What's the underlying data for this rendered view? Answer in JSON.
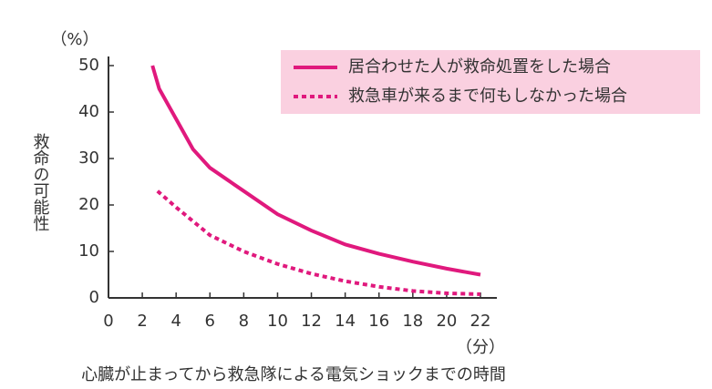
{
  "chart_data": {
    "type": "line",
    "y_unit": "（%）",
    "x_unit": "（分）",
    "y_label": "救命の可能性",
    "x_label": "心臓が止まってから救急隊による電気ショックまでの時間",
    "xlim": [
      0,
      22
    ],
    "xticks": [
      0,
      2,
      4,
      6,
      8,
      10,
      12,
      14,
      16,
      18,
      20,
      22
    ],
    "ylim": [
      0,
      50
    ],
    "yticks": [
      0,
      10,
      20,
      30,
      40,
      50
    ],
    "legend": "upper right",
    "series": [
      {
        "name": "居合わせた人が救命処置をした場合",
        "color": "#e0197d",
        "style": "solid",
        "x": [
          2.6,
          3,
          4,
          5,
          6,
          7,
          8,
          10,
          12,
          14,
          16,
          18,
          20,
          22
        ],
        "values": [
          50,
          45,
          38.5,
          32,
          28,
          25.5,
          23,
          18,
          14.5,
          11.5,
          9.5,
          7.8,
          6.3,
          5
        ]
      },
      {
        "name": "救急車が来るまで何もしなかった場合",
        "color": "#e0197d",
        "style": "dashed",
        "x": [
          2.9,
          4,
          6,
          8,
          10,
          12,
          14,
          16,
          18,
          20,
          22
        ],
        "values": [
          23,
          19.5,
          13.5,
          10,
          7.3,
          5.2,
          3.6,
          2.4,
          1.5,
          1,
          0.8
        ]
      }
    ]
  }
}
